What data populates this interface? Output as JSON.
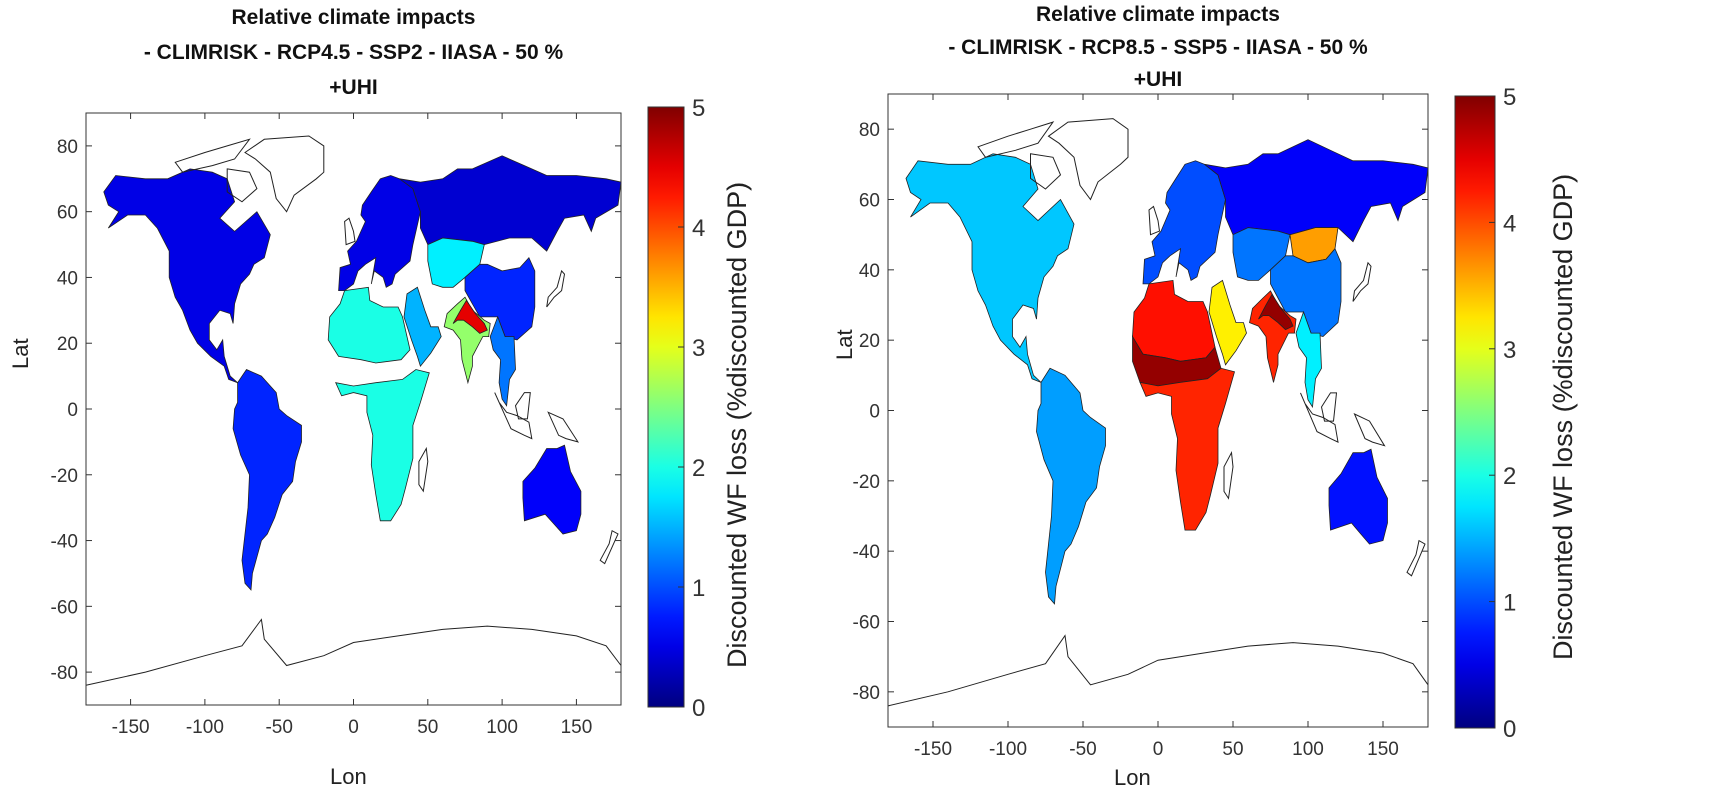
{
  "panels": [
    {
      "title_lines": [
        "Relative climate impacts",
        "- CLIMRISK - RCP4.5 - SSP2 - IIASA - 50 %",
        "+UHI"
      ],
      "xlabel": "Lon",
      "ylabel": "Lat",
      "colorbar_label": "Discounted WF loss (%discounted GDP)"
    },
    {
      "title_lines": [
        "Relative climate impacts",
        "- CLIMRISK - RCP8.5 - SSP5 - IIASA - 50 %",
        "+UHI"
      ],
      "xlabel": "Lon",
      "ylabel": "Lat",
      "colorbar_label": "Discounted WF loss (%discounted GDP)"
    }
  ],
  "axes": {
    "x_ticks": [
      "-150",
      "-100",
      "-50",
      "0",
      "50",
      "100",
      "150"
    ],
    "y_ticks": [
      "80",
      "60",
      "40",
      "20",
      "0",
      "-20",
      "-40",
      "-60",
      "-80"
    ],
    "colorbar_ticks": [
      "5",
      "4",
      "3",
      "2",
      "1",
      "0"
    ]
  },
  "chart_data": [
    {
      "type": "heatmap",
      "title": "Relative climate impacts - CLIMRISK - RCP4.5 - SSP2 - IIASA - 50 % +UHI",
      "xlabel": "Lon",
      "ylabel": "Lat",
      "xlim": [
        -180,
        180
      ],
      "ylim": [
        -90,
        90
      ],
      "colorbar": {
        "label": "Discounted WF loss (%discounted GDP)",
        "range": [
          0,
          5
        ],
        "colormap": "jet"
      },
      "regions": [
        {
          "region": "North America",
          "value": 0.5
        },
        {
          "region": "South America",
          "value": 0.8
        },
        {
          "region": "Europe",
          "value": 0.5
        },
        {
          "region": "Russia/Siberia",
          "value": 0.4
        },
        {
          "region": "Central Asia",
          "value": 1.8
        },
        {
          "region": "China",
          "value": 0.8
        },
        {
          "region": "North Africa/Sahara",
          "value": 2.0
        },
        {
          "region": "Sub-Saharan Africa",
          "value": 2.0
        },
        {
          "region": "Arabia",
          "value": 1.5
        },
        {
          "region": "India/Pakistan",
          "value": 2.6
        },
        {
          "region": "Indus-Ganges",
          "value": 4.5
        },
        {
          "region": "Southeast Asia",
          "value": 1.2
        },
        {
          "region": "Australia",
          "value": 0.6
        }
      ]
    },
    {
      "type": "heatmap",
      "title": "Relative climate impacts - CLIMRISK - RCP8.5 - SSP5 - IIASA - 50 % +UHI",
      "xlabel": "Lon",
      "ylabel": "Lat",
      "xlim": [
        -180,
        180
      ],
      "ylim": [
        -90,
        90
      ],
      "colorbar": {
        "label": "Discounted WF loss (%discounted GDP)",
        "range": [
          0,
          5
        ],
        "colormap": "jet"
      },
      "regions": [
        {
          "region": "North America",
          "value": 1.6
        },
        {
          "region": "South America",
          "value": 1.4
        },
        {
          "region": "Europe",
          "value": 1.0
        },
        {
          "region": "Russia/Siberia",
          "value": 0.6
        },
        {
          "region": "Central Asia",
          "value": 1.2
        },
        {
          "region": "Mongolia",
          "value": 3.6
        },
        {
          "region": "China",
          "value": 1.2
        },
        {
          "region": "North Africa/Sahara",
          "value": 4.3
        },
        {
          "region": "Sahel",
          "value": 4.9
        },
        {
          "region": "Sub-Saharan Africa",
          "value": 4.2
        },
        {
          "region": "Arabia",
          "value": 3.2
        },
        {
          "region": "India/Pakistan",
          "value": 4.2
        },
        {
          "region": "Indus-Ganges",
          "value": 4.9
        },
        {
          "region": "Southeast Asia",
          "value": 1.8
        },
        {
          "region": "Australia",
          "value": 0.7
        }
      ]
    }
  ]
}
